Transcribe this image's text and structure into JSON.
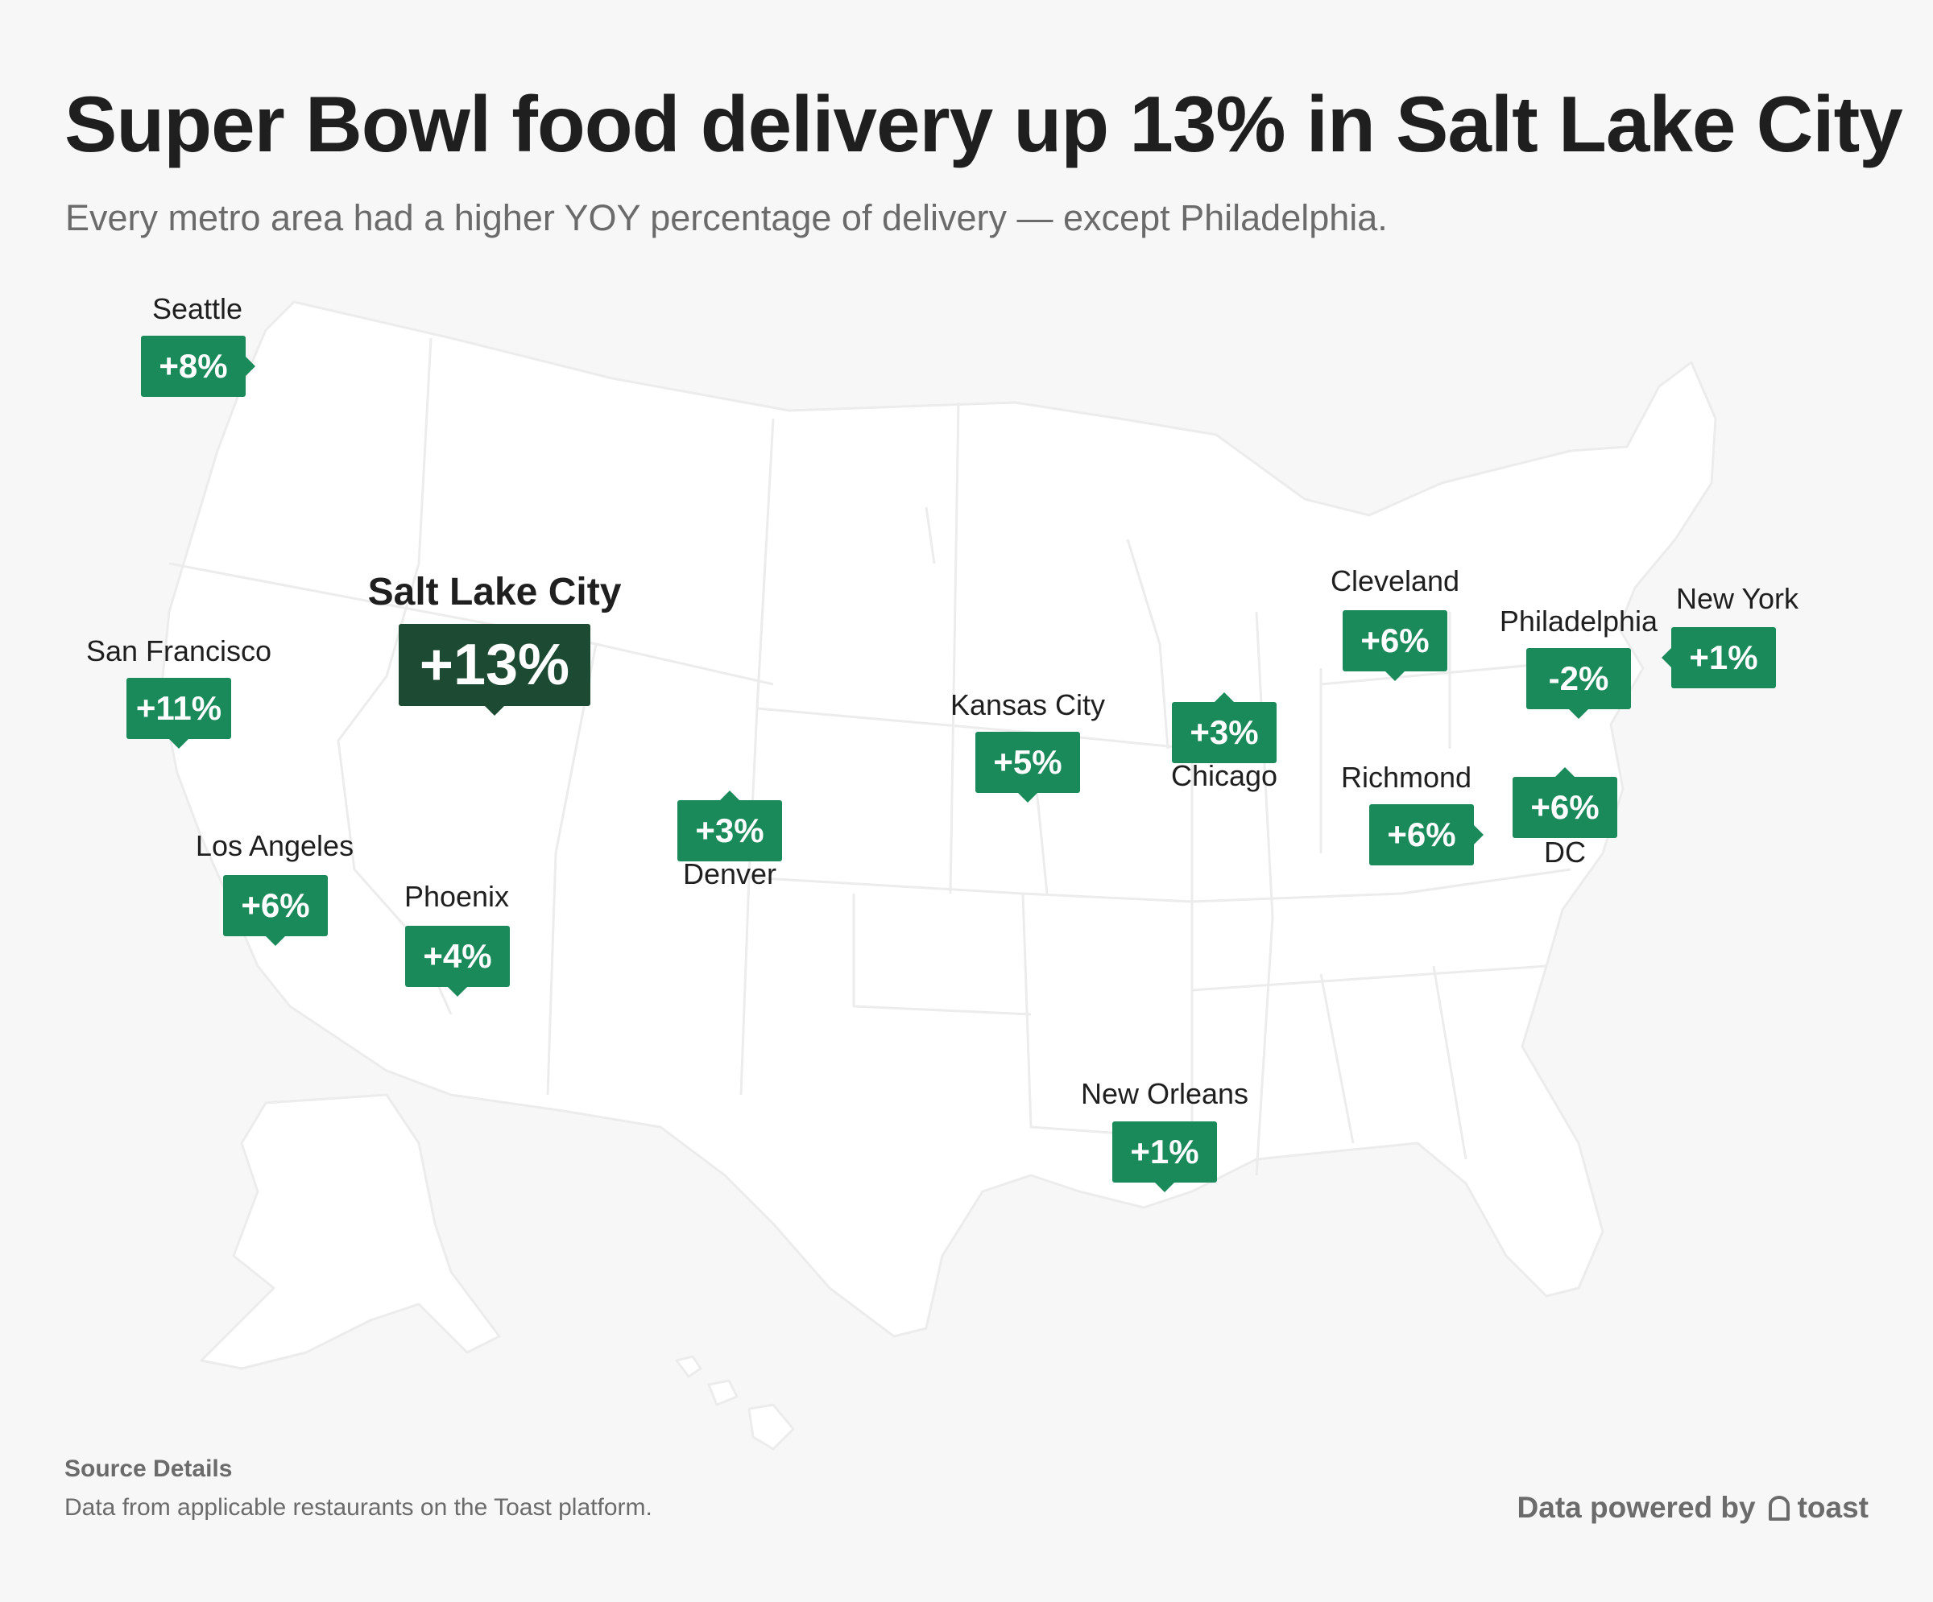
{
  "header": {
    "title": "Super Bowl food delivery up 13% in Salt Lake City",
    "subtitle": "Every metro area had a higher YOY percentage of delivery — except Philadelphia."
  },
  "colors": {
    "background": "#f7f7f7",
    "land": "#ffffff",
    "badge": "#1b8a5a",
    "badge_highlight": "#1d4a33",
    "text": "#1f1f1f",
    "muted_text": "#6b6b6b"
  },
  "map": {
    "region": "United States (contiguous, Alaska, Hawaii)",
    "cities": [
      {
        "name": "Seattle",
        "change": "+8%",
        "value": 8
      },
      {
        "name": "San Francisco",
        "change": "+11%",
        "value": 11
      },
      {
        "name": "Los Angeles",
        "change": "+6%",
        "value": 6
      },
      {
        "name": "Phoenix",
        "change": "+4%",
        "value": 4
      },
      {
        "name": "Salt Lake City",
        "change": "+13%",
        "value": 13,
        "highlight": true
      },
      {
        "name": "Denver",
        "change": "+3%",
        "value": 3
      },
      {
        "name": "Kansas City",
        "change": "+5%",
        "value": 5
      },
      {
        "name": "Chicago",
        "change": "+3%",
        "value": 3
      },
      {
        "name": "Cleveland",
        "change": "+6%",
        "value": 6
      },
      {
        "name": "Philadelphia",
        "change": "-2%",
        "value": -2
      },
      {
        "name": "New York",
        "change": "+1%",
        "value": 1
      },
      {
        "name": "Richmond",
        "change": "+6%",
        "value": 6
      },
      {
        "name": "DC",
        "change": "+6%",
        "value": 6
      },
      {
        "name": "New Orleans",
        "change": "+1%",
        "value": 1
      }
    ]
  },
  "footer": {
    "source_heading": "Source Details",
    "source_text": "Data from applicable restaurants on the Toast platform.",
    "powered_by": "Data powered by",
    "brand": "toast",
    "brand_icon": "toast-logo-icon"
  }
}
